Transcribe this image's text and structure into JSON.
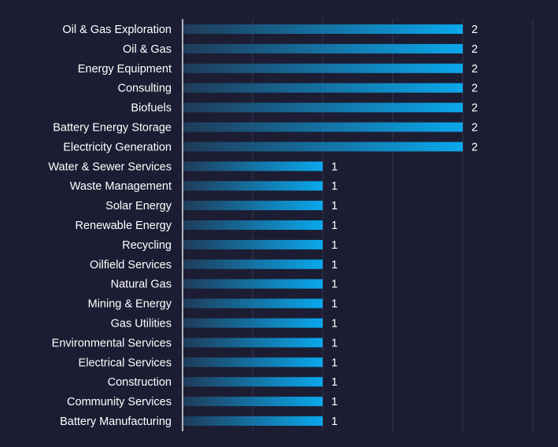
{
  "chart_data": {
    "type": "bar",
    "orientation": "horizontal",
    "categories": [
      "Oil & Gas Exploration",
      "Oil & Gas",
      "Energy Equipment",
      "Consulting",
      "Biofuels",
      "Battery Energy Storage",
      "Electricity Generation",
      "Water & Sewer Services",
      "Waste Management",
      "Solar Energy",
      "Renewable Energy",
      "Recycling",
      "Oilfield Services",
      "Natural Gas",
      "Mining & Energy",
      "Gas Utilities",
      "Environmental Services",
      "Electrical Services",
      "Construction",
      "Community Services",
      "Battery Manufacturing"
    ],
    "values": [
      2,
      2,
      2,
      2,
      2,
      2,
      2,
      1,
      1,
      1,
      1,
      1,
      1,
      1,
      1,
      1,
      1,
      1,
      1,
      1,
      1
    ],
    "xlim": [
      0,
      2.5
    ],
    "grid": true,
    "data_labels": true,
    "colors": {
      "background": "#1c1d33",
      "bar_start": "#1f3b58",
      "bar_end": "#0aa8ec",
      "grid": "#34364f",
      "axis": "#e6e6e6",
      "text": "#ffffff"
    }
  }
}
